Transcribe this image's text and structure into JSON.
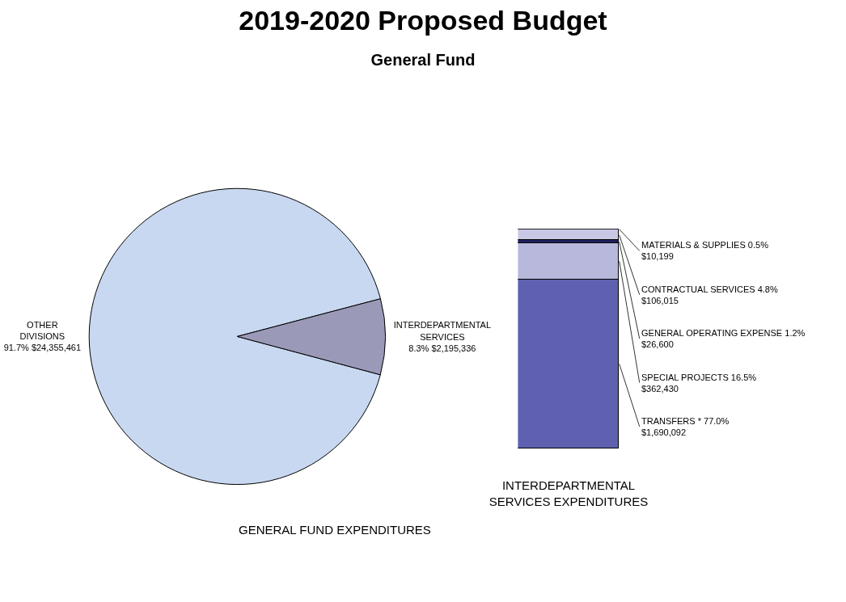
{
  "chart_data": [
    {
      "type": "pie",
      "title": "2019-2020 Proposed Budget",
      "subtitle": "General Fund",
      "categories": [
        "OTHER DIVISIONS",
        "INTERDEPARTMENTAL SERVICES"
      ],
      "values": [
        24355461,
        2195336
      ],
      "value_labels": [
        "91.7% $24,355,461",
        "8.3% $2,195,336"
      ],
      "colors": [
        "#c8d8f0",
        "#9a9ab8"
      ],
      "annotations": [
        "GENERAL FUND EXPENDITURES"
      ]
    },
    {
      "type": "bar",
      "stacked": true,
      "categories": [
        null
      ],
      "xlabel": "INTERDEPARTMENTAL SERVICES EXPENDITURES",
      "series": [
        {
          "name": "TRANSFERS * 77.0%",
          "color": "#6060b0",
          "values": [
            1690092
          ],
          "value_labels": [
            "$1,690,092"
          ]
        },
        {
          "name": "SPECIAL PROJECTS 16.5%",
          "color": "#b8b8dc",
          "values": [
            362430
          ],
          "value_labels": [
            "$362,430"
          ]
        },
        {
          "name": "GENERAL OPERATING EXPENSE 1.2%",
          "color": "#202060",
          "values": [
            26600
          ],
          "value_labels": [
            "$26,600"
          ]
        },
        {
          "name": "CONTRACTUAL SERVICES 4.8%",
          "color": "#c8c8e4",
          "values": [
            106015
          ],
          "value_labels": [
            "$106,015"
          ]
        },
        {
          "name": "MATERIALS & SUPPLIES 0.5%",
          "color": "#8080a0",
          "values": [
            10199
          ],
          "value_labels": [
            "$10,199"
          ]
        }
      ]
    }
  ]
}
